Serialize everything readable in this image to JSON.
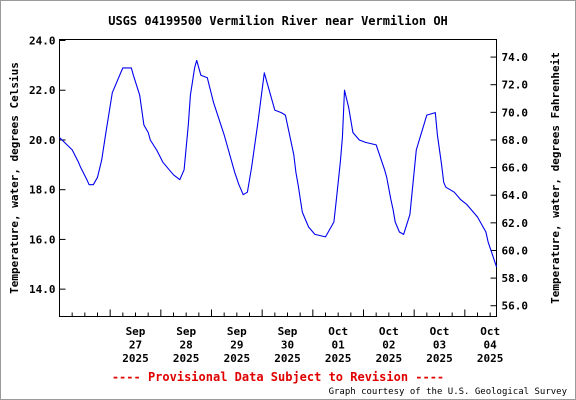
{
  "chart_data": {
    "type": "line",
    "title": "USGS 04199500 Vermilion River near Vermilion OH",
    "ylabel": "Temperature, water, degrees Celsius",
    "ylabel_right": "Temperature, water, degrees Fahrenheit",
    "ylim": [
      12.9,
      24.0
    ],
    "yticks": [
      "14.0",
      "16.0",
      "18.0",
      "20.0",
      "22.0",
      "24.0"
    ],
    "y2ticks": [
      "56.0",
      "58.0",
      "60.0",
      "62.0",
      "64.0",
      "66.0",
      "68.0",
      "70.0",
      "72.0",
      "74.0"
    ],
    "xlim": [
      "2025-09-26 00:00",
      "2025-10-04 15:00"
    ],
    "xticks": [
      {
        "month": "Sep",
        "day": "27",
        "year": "2025"
      },
      {
        "month": "Sep",
        "day": "28",
        "year": "2025"
      },
      {
        "month": "Sep",
        "day": "29",
        "year": "2025"
      },
      {
        "month": "Sep",
        "day": "30",
        "year": "2025"
      },
      {
        "month": "Oct",
        "day": "01",
        "year": "2025"
      },
      {
        "month": "Oct",
        "day": "02",
        "year": "2025"
      },
      {
        "month": "Oct",
        "day": "03",
        "year": "2025"
      },
      {
        "month": "Oct",
        "day": "04",
        "year": "2025"
      }
    ],
    "grid": false,
    "series": [
      {
        "color": "#0000ee",
        "x": [
          "2025-09-26 00:00",
          "2025-09-26 06:00",
          "2025-09-26 09:00",
          "2025-09-26 10:00",
          "2025-09-26 13:00",
          "2025-09-26 14:00",
          "2025-09-26 16:00",
          "2025-09-26 18:00",
          "2025-09-26 20:00",
          "2025-09-26 22:00",
          "2025-09-27 01:00",
          "2025-09-27 06:00",
          "2025-09-27 10:00",
          "2025-09-27 11:00",
          "2025-09-27 14:00",
          "2025-09-27 15:00",
          "2025-09-27 16:00",
          "2025-09-27 18:00",
          "2025-09-27 19:00",
          "2025-09-27 22:00",
          "2025-09-28 01:00",
          "2025-09-28 06:00",
          "2025-09-28 09:00",
          "2025-09-28 11:00",
          "2025-09-28 13:00",
          "2025-09-28 14:00",
          "2025-09-28 16:00",
          "2025-09-28 17:00",
          "2025-09-28 19:00",
          "2025-09-28 22:00",
          "2025-09-29 01:00",
          "2025-09-29 06:00",
          "2025-09-29 09:00",
          "2025-09-29 11:00",
          "2025-09-29 13:00",
          "2025-09-29 14:00",
          "2025-09-29 15:00",
          "2025-09-29 17:00",
          "2025-09-29 19:00",
          "2025-09-29 22:00",
          "2025-09-30 01:00",
          "2025-09-30 06:00",
          "2025-09-30 09:00",
          "2025-09-30 11:00",
          "2025-09-30 14:00",
          "2025-09-30 15:00",
          "2025-09-30 16:00",
          "2025-09-30 17:00",
          "2025-09-30 19:00",
          "2025-09-30 22:00",
          "2025-10-01 01:00",
          "2025-10-01 06:00",
          "2025-10-01 10:00",
          "2025-10-01 11:00",
          "2025-10-01 13:00",
          "2025-10-01 14:00",
          "2025-10-01 15:00",
          "2025-10-01 17:00",
          "2025-10-01 19:00",
          "2025-10-01 22:00",
          "2025-10-02 01:00",
          "2025-10-02 06:00",
          "2025-10-02 10:00",
          "2025-10-02 11:00",
          "2025-10-02 13:00",
          "2025-10-02 14:00",
          "2025-10-02 15:00",
          "2025-10-02 17:00",
          "2025-10-02 19:00",
          "2025-10-02 22:00",
          "2025-10-03 01:00",
          "2025-10-03 06:00",
          "2025-10-03 10:00",
          "2025-10-03 11:00",
          "2025-10-03 13:00",
          "2025-10-03 14:00",
          "2025-10-03 15:00",
          "2025-10-03 17:00",
          "2025-10-03 19:00",
          "2025-10-03 22:00",
          "2025-10-04 01:00",
          "2025-10-04 06:00",
          "2025-10-04 10:00",
          "2025-10-04 11:00",
          "2025-10-04 13:00",
          "2025-10-04 15:00"
        ],
        "y": [
          20.1,
          19.6,
          19.1,
          18.9,
          18.4,
          18.2,
          18.2,
          18.5,
          19.2,
          20.3,
          21.9,
          22.9,
          22.9,
          22.6,
          21.8,
          21.2,
          20.6,
          20.3,
          20.0,
          19.6,
          19.1,
          18.6,
          18.4,
          18.8,
          20.6,
          21.8,
          22.9,
          23.2,
          22.6,
          22.5,
          21.5,
          20.2,
          19.3,
          18.7,
          18.2,
          18.0,
          17.8,
          17.9,
          18.9,
          20.7,
          22.7,
          21.2,
          21.1,
          21.0,
          19.8,
          19.4,
          18.7,
          18.2,
          17.1,
          16.5,
          16.2,
          16.1,
          16.7,
          17.5,
          19.1,
          20.1,
          22.0,
          21.3,
          20.3,
          20.0,
          19.9,
          19.8,
          18.8,
          18.5,
          17.6,
          17.2,
          16.7,
          16.3,
          16.2,
          17.0,
          19.6,
          21.0,
          21.1,
          20.2,
          19.0,
          18.3,
          18.1,
          18.0,
          17.9,
          17.6,
          17.4,
          16.9,
          16.3,
          15.9,
          15.4,
          14.9
        ]
      }
    ]
  },
  "footer": {
    "notice": "---- Provisional Data Subject to Revision ----",
    "credit": "Graph courtesy of the U.S. Geological Survey"
  }
}
